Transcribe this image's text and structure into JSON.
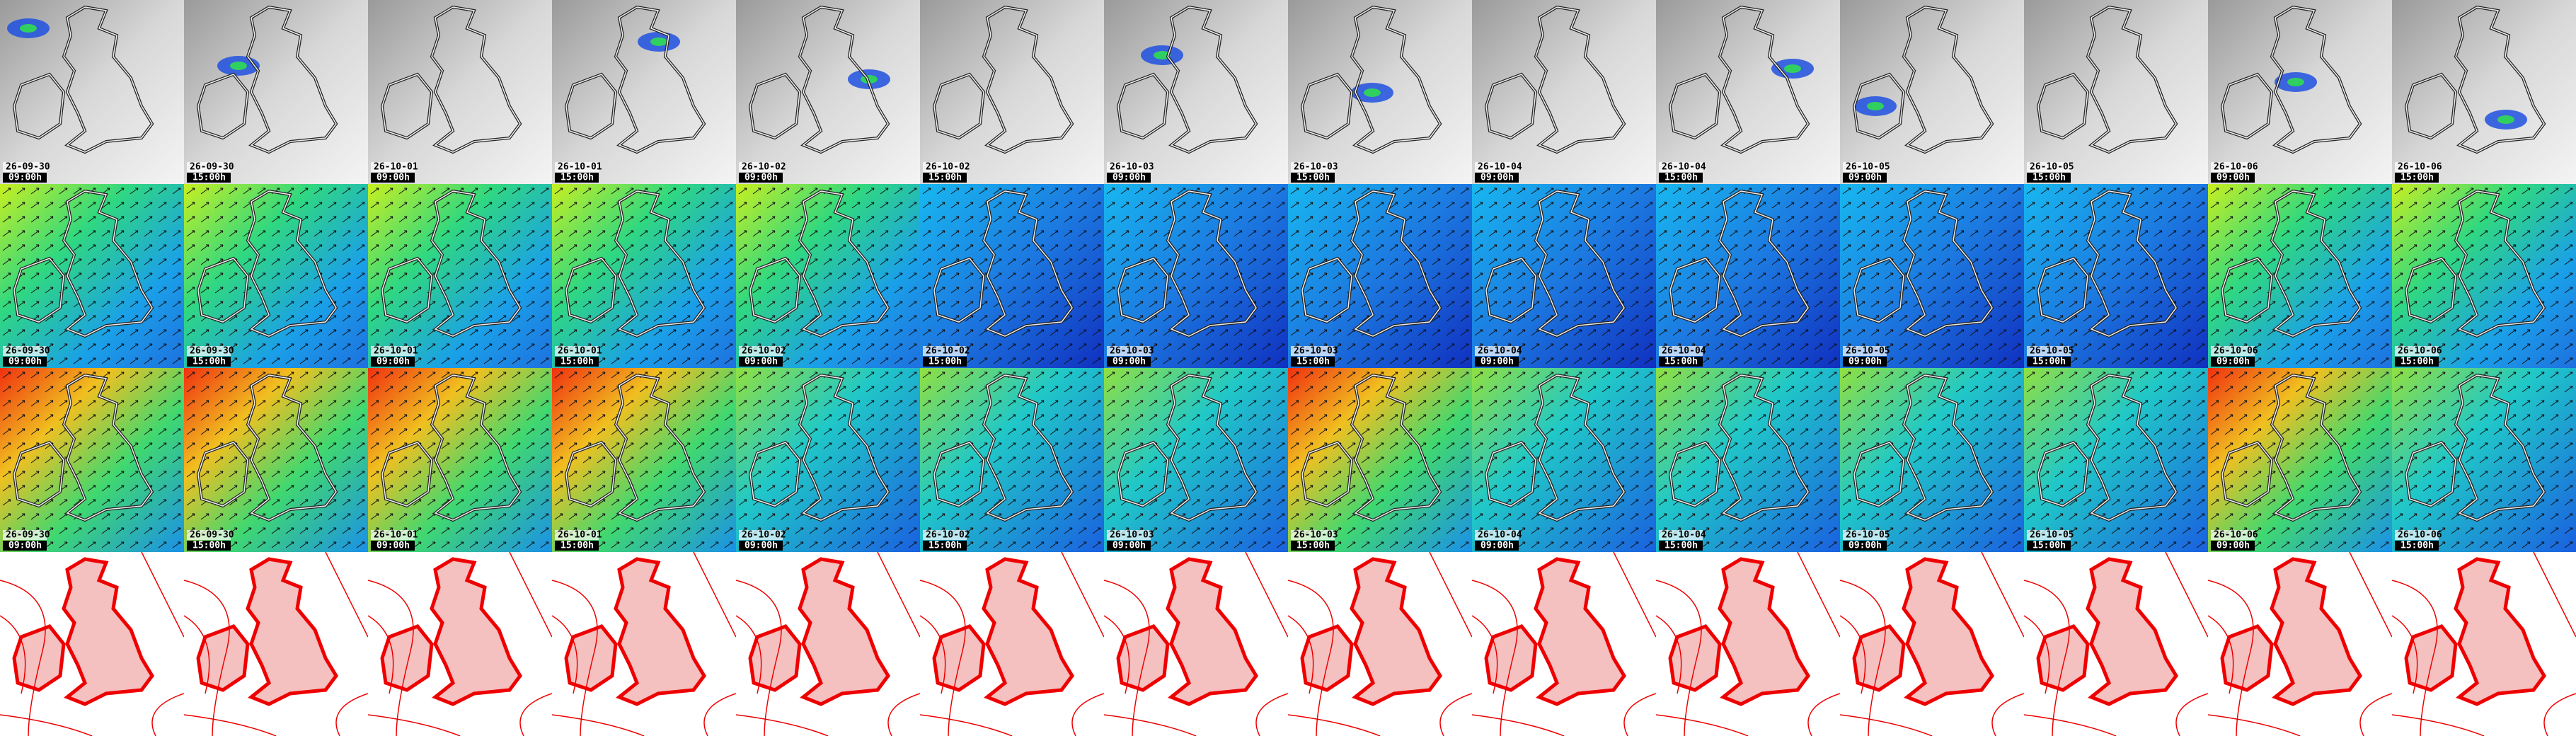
{
  "rows": [
    {
      "tiles": [
        {
          "date": "26-09-30",
          "time": "09:00h"
        },
        {
          "date": "26-09-30",
          "time": "15:00h"
        },
        {
          "date": "26-10-01",
          "time": "09:00h"
        },
        {
          "date": "26-10-01",
          "time": "15:00h"
        },
        {
          "date": "26-10-02",
          "time": "09:00h"
        },
        {
          "date": "26-10-02",
          "time": "15:00h"
        },
        {
          "date": "26-10-03",
          "time": "09:00h"
        },
        {
          "date": "26-10-03",
          "time": "15:00h"
        },
        {
          "date": "26-10-04",
          "time": "09:00h"
        },
        {
          "date": "26-10-04",
          "time": "15:00h"
        },
        {
          "date": "26-10-05",
          "time": "09:00h"
        },
        {
          "date": "26-10-05",
          "time": "15:00h"
        },
        {
          "date": "26-10-06",
          "time": "09:00h"
        },
        {
          "date": "26-10-06",
          "time": "15:00h"
        }
      ]
    },
    {
      "tiles": [
        {
          "date": "26-09-30",
          "time": "09:00h"
        },
        {
          "date": "26-09-30",
          "time": "15:00h"
        },
        {
          "date": "26-10-01",
          "time": "09:00h"
        },
        {
          "date": "26-10-01",
          "time": "15:00h"
        },
        {
          "date": "26-10-02",
          "time": "09:00h"
        },
        {
          "date": "26-10-02",
          "time": "15:00h"
        },
        {
          "date": "26-10-03",
          "time": "09:00h"
        },
        {
          "date": "26-10-03",
          "time": "15:00h"
        },
        {
          "date": "26-10-04",
          "time": "09:00h"
        },
        {
          "date": "26-10-04",
          "time": "15:00h"
        },
        {
          "date": "26-10-05",
          "time": "09:00h"
        },
        {
          "date": "26-10-05",
          "time": "15:00h"
        },
        {
          "date": "26-10-06",
          "time": "09:00h"
        },
        {
          "date": "26-10-06",
          "time": "15:00h"
        }
      ]
    },
    {
      "tiles": [
        {
          "date": "26-09-30",
          "time": "09:00h"
        },
        {
          "date": "26-09-30",
          "time": "15:00h"
        },
        {
          "date": "26-10-01",
          "time": "09:00h"
        },
        {
          "date": "26-10-01",
          "time": "15:00h"
        },
        {
          "date": "26-10-02",
          "time": "09:00h"
        },
        {
          "date": "26-10-02",
          "time": "15:00h"
        },
        {
          "date": "26-10-03",
          "time": "09:00h"
        },
        {
          "date": "26-10-03",
          "time": "15:00h"
        },
        {
          "date": "26-10-04",
          "time": "09:00h"
        },
        {
          "date": "26-10-04",
          "time": "15:00h"
        },
        {
          "date": "26-10-05",
          "time": "09:00h"
        },
        {
          "date": "26-10-05",
          "time": "15:00h"
        },
        {
          "date": "26-10-06",
          "time": "09:00h"
        },
        {
          "date": "26-10-06",
          "time": "15:00h"
        }
      ]
    }
  ]
}
